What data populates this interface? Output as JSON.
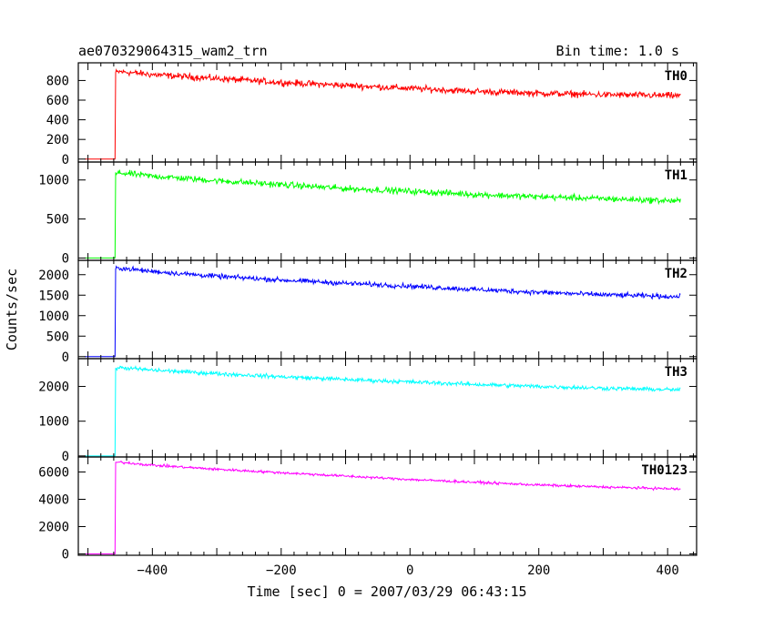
{
  "header": {
    "title": "ae070329064315_wam2_trn",
    "bin_time": "Bin time: 1.0 s"
  },
  "chart_data": {
    "type": "line",
    "title": "ae070329064315_wam2_trn",
    "subtitle": "Bin time: 1.0 s",
    "xlabel": "Time [sec] 0 = 2007/03/29 06:43:15",
    "ylabel": "Counts/sec",
    "xlim": [
      -515,
      445
    ],
    "x_ticks": [
      -400,
      -200,
      0,
      200,
      400
    ],
    "x_tick_labels": [
      "−400",
      "−200",
      "0",
      "200",
      "400"
    ],
    "grid": false,
    "legend": "none",
    "panels": [
      {
        "name": "TH0",
        "color": "#ff0000",
        "ylim": [
          -30,
          980
        ],
        "y_ticks": [
          0,
          200,
          400,
          600,
          800
        ],
        "x": [
          -505,
          -458,
          -457,
          -450,
          -400,
          -300,
          -200,
          -100,
          0,
          100,
          200,
          300,
          420
        ],
        "y": [
          0,
          0,
          880,
          890,
          860,
          820,
          780,
          750,
          720,
          690,
          670,
          655,
          645
        ],
        "noise": 25
      },
      {
        "name": "TH1",
        "color": "#00ff00",
        "ylim": [
          -30,
          1230
        ],
        "y_ticks": [
          0,
          500,
          1000
        ],
        "x": [
          -505,
          -458,
          -457,
          -450,
          -400,
          -300,
          -200,
          -100,
          0,
          100,
          200,
          300,
          420
        ],
        "y": [
          0,
          0,
          1080,
          1090,
          1050,
          990,
          940,
          890,
          855,
          815,
          785,
          760,
          730
        ],
        "noise": 30
      },
      {
        "name": "TH2",
        "color": "#0000ff",
        "ylim": [
          -50,
          2350
        ],
        "y_ticks": [
          0,
          500,
          1000,
          1500,
          2000
        ],
        "x": [
          -505,
          -458,
          -457,
          -450,
          -400,
          -300,
          -200,
          -100,
          0,
          100,
          200,
          300,
          420
        ],
        "y": [
          0,
          0,
          2150,
          2160,
          2080,
          1960,
          1870,
          1790,
          1720,
          1640,
          1570,
          1510,
          1460
        ],
        "noise": 45
      },
      {
        "name": "TH3",
        "color": "#00ffff",
        "ylim": [
          -30,
          2800
        ],
        "y_ticks": [
          0,
          1000,
          2000
        ],
        "x": [
          -505,
          -458,
          -457,
          -450,
          -400,
          -300,
          -200,
          -100,
          0,
          100,
          200,
          300,
          420
        ],
        "y": [
          0,
          0,
          2530,
          2540,
          2470,
          2370,
          2280,
          2200,
          2130,
          2060,
          2000,
          1950,
          1900
        ],
        "noise": 45
      },
      {
        "name": "TH0123",
        "color": "#ff00ff",
        "ylim": [
          -100,
          7100
        ],
        "y_ticks": [
          0,
          2000,
          4000,
          6000
        ],
        "x": [
          -505,
          -458,
          -457,
          -450,
          -400,
          -300,
          -200,
          -100,
          0,
          100,
          200,
          300,
          420
        ],
        "y": [
          0,
          0,
          6700,
          6720,
          6500,
          6200,
          5950,
          5700,
          5450,
          5250,
          5050,
          4900,
          4750
        ],
        "noise": 70
      }
    ]
  }
}
